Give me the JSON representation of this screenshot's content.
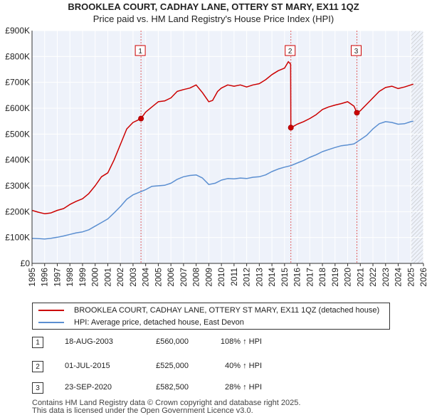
{
  "chart_data": {
    "type": "line",
    "title": "BROOKLEA COURT, CADHAY LANE, OTTERY ST MARY, EX11 1QZ",
    "subtitle": "Price paid vs. HM Land Registry's House Price Index (HPI)",
    "xlabel": "",
    "ylabel": "",
    "xlim": [
      1995.0,
      2026.0
    ],
    "ylim": [
      0,
      900000
    ],
    "x_ticks": [
      1995,
      1996,
      1997,
      1998,
      1999,
      2000,
      2001,
      2002,
      2003,
      2004,
      2005,
      2006,
      2007,
      2008,
      2009,
      2010,
      2011,
      2012,
      2013,
      2014,
      2015,
      2016,
      2017,
      2018,
      2019,
      2020,
      2021,
      2022,
      2023,
      2024,
      2025,
      2026
    ],
    "x_tick_labels": [
      "1995",
      "1996",
      "1997",
      "1998",
      "1999",
      "2000",
      "2001",
      "2002",
      "2003",
      "2004",
      "2005",
      "2006",
      "2007",
      "2008",
      "2009",
      "2010",
      "2011",
      "2012",
      "2013",
      "2014",
      "2015",
      "2016",
      "2017",
      "2018",
      "2019",
      "2020",
      "2021",
      "2022",
      "2023",
      "2024",
      "2025",
      "2026"
    ],
    "y_ticks": [
      0,
      100000,
      200000,
      300000,
      400000,
      500000,
      600000,
      700000,
      800000,
      900000
    ],
    "y_tick_labels": [
      "£0",
      "£100K",
      "£200K",
      "£300K",
      "£400K",
      "£500K",
      "£600K",
      "£700K",
      "£800K",
      "£900K"
    ],
    "grid": true,
    "series": [
      {
        "name": "BROOKLEA COURT, CADHAY LANE, OTTERY ST MARY, EX11 1QZ (detached house)",
        "color": "#cc0000",
        "x": [
          1995.0,
          1995.5,
          1996.0,
          1996.5,
          1997.0,
          1997.5,
          1998.0,
          1998.5,
          1999.0,
          1999.5,
          2000.0,
          2000.5,
          2001.0,
          2001.5,
          2002.0,
          2002.5,
          2003.0,
          2003.3,
          2003.63,
          2004.0,
          2004.5,
          2005.0,
          2005.5,
          2006.0,
          2006.5,
          2007.0,
          2007.5,
          2008.0,
          2008.5,
          2009.0,
          2009.3,
          2009.7,
          2010.0,
          2010.5,
          2011.0,
          2011.5,
          2012.0,
          2012.5,
          2013.0,
          2013.5,
          2014.0,
          2014.5,
          2015.0,
          2015.3,
          2015.48,
          2015.5,
          2015.52,
          2016.0,
          2016.5,
          2017.0,
          2017.5,
          2018.0,
          2018.5,
          2019.0,
          2019.5,
          2020.0,
          2020.5,
          2020.73,
          2021.0,
          2021.5,
          2022.0,
          2022.5,
          2023.0,
          2023.5,
          2024.0,
          2024.5,
          2025.0,
          2025.2
        ],
        "values": [
          205000,
          198000,
          192000,
          195000,
          205000,
          212000,
          228000,
          240000,
          250000,
          270000,
          300000,
          335000,
          350000,
          400000,
          460000,
          520000,
          545000,
          552000,
          560000,
          585000,
          605000,
          625000,
          628000,
          640000,
          665000,
          672000,
          678000,
          690000,
          660000,
          625000,
          630000,
          665000,
          678000,
          690000,
          685000,
          690000,
          682000,
          690000,
          695000,
          710000,
          730000,
          745000,
          755000,
          780000,
          770000,
          525000,
          525000,
          538000,
          548000,
          560000,
          575000,
          595000,
          605000,
          612000,
          618000,
          625000,
          608000,
          582500,
          590000,
          615000,
          640000,
          665000,
          680000,
          685000,
          676000,
          682000,
          690000,
          693000
        ]
      },
      {
        "name": "HPI: Average price, detached house, East Devon",
        "color": "#5b8fd1",
        "x": [
          1995.0,
          1995.5,
          1996.0,
          1996.5,
          1997.0,
          1997.5,
          1998.0,
          1998.5,
          1999.0,
          1999.5,
          2000.0,
          2000.5,
          2001.0,
          2001.5,
          2002.0,
          2002.5,
          2003.0,
          2003.5,
          2004.0,
          2004.5,
          2005.0,
          2005.5,
          2006.0,
          2006.5,
          2007.0,
          2007.5,
          2008.0,
          2008.5,
          2009.0,
          2009.5,
          2010.0,
          2010.5,
          2011.0,
          2011.5,
          2012.0,
          2012.5,
          2013.0,
          2013.5,
          2014.0,
          2014.5,
          2015.0,
          2015.5,
          2016.0,
          2016.5,
          2017.0,
          2017.5,
          2018.0,
          2018.5,
          2019.0,
          2019.5,
          2020.0,
          2020.5,
          2021.0,
          2021.5,
          2022.0,
          2022.5,
          2023.0,
          2023.5,
          2024.0,
          2024.5,
          2025.0,
          2025.2
        ],
        "values": [
          97000,
          96000,
          94000,
          97000,
          101000,
          106000,
          112000,
          118000,
          122000,
          130000,
          144000,
          158000,
          172000,
          195000,
          220000,
          248000,
          265000,
          275000,
          285000,
          298000,
          300000,
          302000,
          310000,
          325000,
          335000,
          340000,
          342000,
          330000,
          305000,
          310000,
          322000,
          328000,
          327000,
          330000,
          328000,
          333000,
          335000,
          342000,
          355000,
          365000,
          372000,
          378000,
          388000,
          398000,
          410000,
          420000,
          432000,
          440000,
          448000,
          455000,
          458000,
          462000,
          478000,
          495000,
          520000,
          540000,
          548000,
          545000,
          538000,
          540000,
          548000,
          550000
        ]
      }
    ],
    "sales": [
      {
        "label": "1",
        "x": 2003.63,
        "y": 560000
      },
      {
        "label": "2",
        "x": 2015.5,
        "y": 525000
      },
      {
        "label": "3",
        "x": 2020.73,
        "y": 582500
      }
    ],
    "future_shade_from": 2025.0
  },
  "legend": {
    "property_label": "BROOKLEA COURT, CADHAY LANE, OTTERY ST MARY, EX11 1QZ (detached house)",
    "hpi_label": "HPI: Average price, detached house, East Devon",
    "property_color": "#cc0000",
    "hpi_color": "#5b8fd1"
  },
  "transactions": [
    {
      "num": "1",
      "date": "18-AUG-2003",
      "price": "£560,000",
      "hpi": "108% ↑ HPI"
    },
    {
      "num": "2",
      "date": "01-JUL-2015",
      "price": "£525,000",
      "hpi": "40% ↑ HPI"
    },
    {
      "num": "3",
      "date": "23-SEP-2020",
      "price": "£582,500",
      "hpi": "28% ↑ HPI"
    }
  ],
  "footer": {
    "line1": "Contains HM Land Registry data © Crown copyright and database right 2025.",
    "line2": "This data is licensed under the Open Government Licence v3.0."
  }
}
